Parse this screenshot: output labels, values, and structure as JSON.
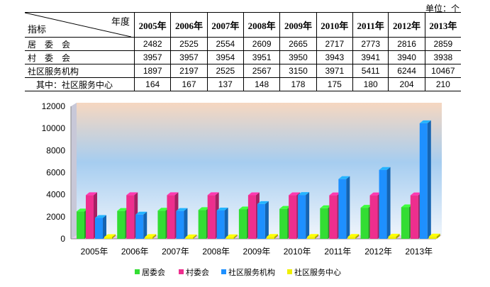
{
  "unit": "单位：个",
  "table": {
    "corner_top": "年度",
    "corner_bottom": "指标",
    "years": [
      "2005年",
      "2006年",
      "2007年",
      "2008年",
      "2009年",
      "2010年",
      "2011年",
      "2012年",
      "2013年"
    ],
    "rows": [
      {
        "label": "居　委　会",
        "values": [
          "2482",
          "2525",
          "2554",
          "2609",
          "2665",
          "2717",
          "2773",
          "2816",
          "2859"
        ]
      },
      {
        "label": "村　委　会",
        "values": [
          "3957",
          "3957",
          "3954",
          "3951",
          "3950",
          "3943",
          "3941",
          "3940",
          "3938"
        ]
      },
      {
        "label": "社区服务机构",
        "values": [
          "1897",
          "2197",
          "2525",
          "2567",
          "3150",
          "3971",
          "5411",
          "6244",
          "10467"
        ]
      },
      {
        "label": "　其中：社区服务中心",
        "values": [
          "164",
          "167",
          "137",
          "148",
          "178",
          "175",
          "180",
          "204",
          "210"
        ]
      }
    ]
  },
  "chart_data": {
    "type": "bar",
    "categories": [
      "2005年",
      "2006年",
      "2007年",
      "2008年",
      "2009年",
      "2010年",
      "2011年",
      "2012年",
      "2013年"
    ],
    "series": [
      {
        "name": "居委会",
        "color": "#33dd33",
        "values": [
          2482,
          2525,
          2554,
          2609,
          2665,
          2717,
          2773,
          2816,
          2859
        ]
      },
      {
        "name": "村委会",
        "color": "#ee2e8e",
        "values": [
          3957,
          3957,
          3954,
          3951,
          3950,
          3943,
          3941,
          3940,
          3938
        ]
      },
      {
        "name": "社区服务机构",
        "color": "#1e90ff",
        "values": [
          1897,
          2197,
          2525,
          2567,
          3150,
          3971,
          5411,
          6244,
          10467
        ]
      },
      {
        "name": "社区服务中心",
        "color": "#f0f000",
        "values": [
          164,
          167,
          137,
          148,
          178,
          175,
          180,
          204,
          210
        ]
      }
    ],
    "ylim": [
      0,
      12000
    ],
    "yticks": [
      "0",
      "2000",
      "4000",
      "6000",
      "8000",
      "10000",
      "12000"
    ],
    "legend": "bottom"
  }
}
